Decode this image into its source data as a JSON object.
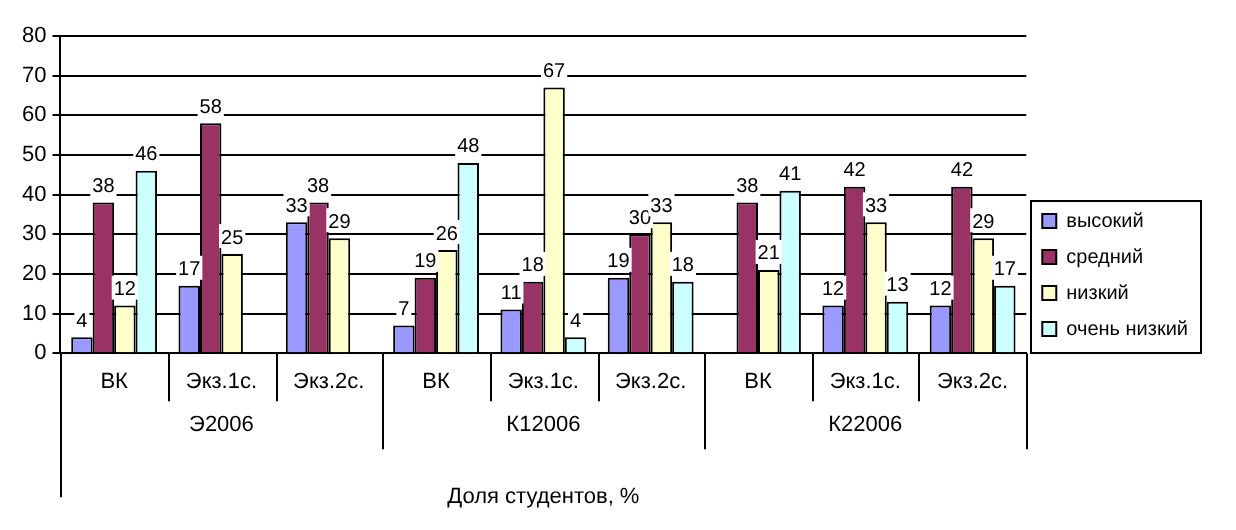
{
  "chart_data": {
    "type": "bar",
    "categories": [
      "ВК",
      "Экз.1с.",
      "Экз.2с.",
      "ВК",
      "Экз.1с.",
      "Экз.2с.",
      "ВК",
      "Экз.1с.",
      "Экз.2с."
    ],
    "annotations": [
      "Э2006",
      "К12006",
      "К22006"
    ],
    "xlabel": "Доля студентов, %",
    "series": [
      {
        "name": "высокий",
        "color": "#9999ff",
        "values": [
          4,
          17,
          33,
          7,
          11,
          19,
          null,
          12,
          12
        ]
      },
      {
        "name": "средний",
        "color": "#993366",
        "values": [
          38,
          58,
          38,
          19,
          18,
          30,
          38,
          42,
          42
        ]
      },
      {
        "name": "низкий",
        "color": "#ffffcc",
        "values": [
          12,
          25,
          29,
          26,
          67,
          33,
          21,
          33,
          29
        ]
      },
      {
        "name": "очень низкий",
        "color": "#ccffff",
        "values": [
          46,
          null,
          null,
          48,
          4,
          18,
          41,
          13,
          17
        ]
      }
    ],
    "ylim": [
      0,
      80
    ],
    "yticks": [
      0,
      10,
      20,
      30,
      40,
      50,
      60,
      70,
      80
    ],
    "grid": "y",
    "legend": "right",
    "data_labels": true
  }
}
